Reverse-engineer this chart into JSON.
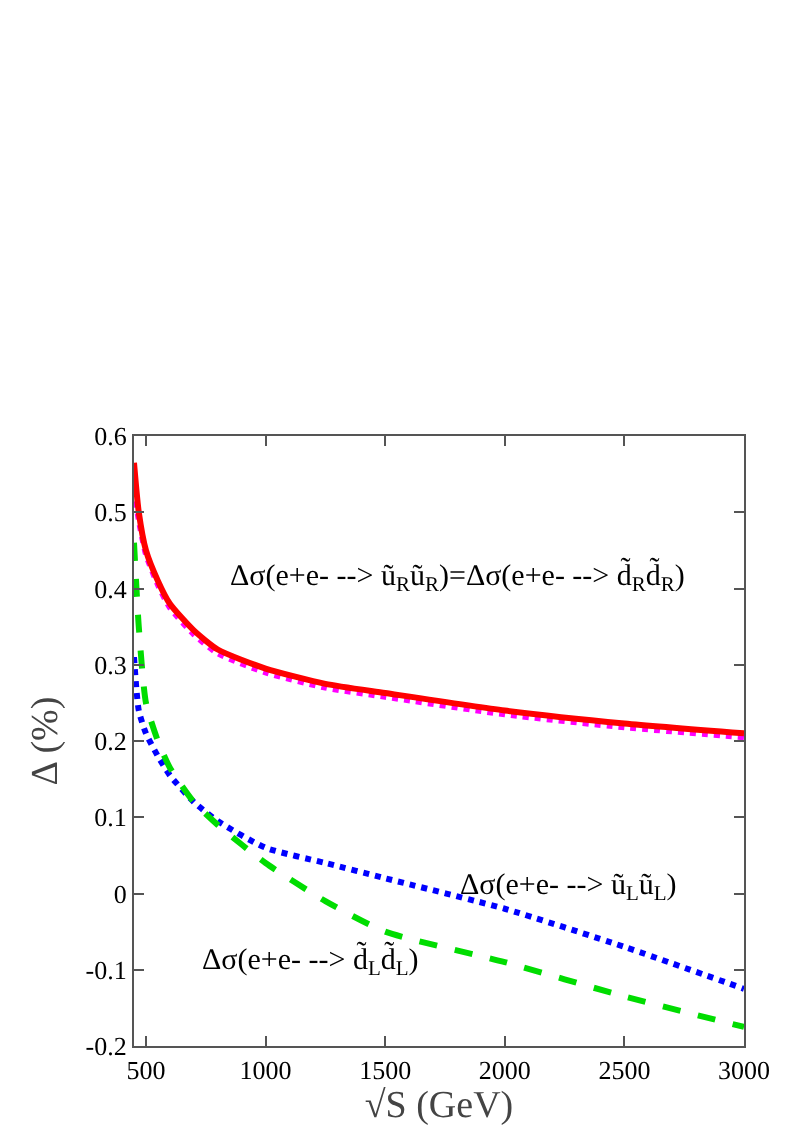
{
  "chart_data": {
    "type": "line",
    "xlabel": "√S (GeV)",
    "ylabel": "Δ (%)",
    "xlim": [
      450,
      3000
    ],
    "ylim": [
      -0.2,
      0.6
    ],
    "xticks": [
      500,
      1000,
      1500,
      2000,
      2500,
      3000
    ],
    "yticks": [
      -0.2,
      -0.1,
      0,
      0.1,
      0.2,
      0.3,
      0.4,
      0.5,
      0.6
    ],
    "grid": false,
    "x": [
      450,
      470,
      500,
      550,
      600,
      700,
      800,
      1000,
      1250,
      1500,
      2000,
      2500,
      3000
    ],
    "series": [
      {
        "color": "#ff00ff",
        "line_style": "dotted",
        "values": [
          0.53,
          0.49,
          0.445,
          0.405,
          0.375,
          0.34,
          0.315,
          0.29,
          0.27,
          0.258,
          0.235,
          0.218,
          0.205
        ]
      },
      {
        "color": "#ff0000",
        "line_style": "solid",
        "values": [
          0.565,
          0.5,
          0.45,
          0.41,
          0.38,
          0.345,
          0.32,
          0.295,
          0.275,
          0.263,
          0.24,
          0.223,
          0.21
        ]
      },
      {
        "color": "#0000ff",
        "line_style": "dotted",
        "values": [
          0.31,
          0.24,
          0.21,
          0.18,
          0.155,
          0.12,
          0.095,
          0.06,
          0.04,
          0.02,
          -0.02,
          -0.07,
          -0.125
        ]
      },
      {
        "color": "#00dd00",
        "line_style": "dashed",
        "values": [
          0.46,
          0.35,
          0.25,
          0.2,
          0.165,
          0.12,
          0.09,
          0.04,
          -0.01,
          -0.05,
          -0.09,
          -0.135,
          -0.175
        ]
      }
    ],
    "annotations": [
      "Δσ(e+e- --> ũ$_{R}$ũ$_{R}$)=Δσ(e+e- --> d̃$_{R}$d̃$_{R}$)",
      "Δσ(e+e- --> ũ$_{L}$ũ$_{L}$)",
      "Δσ(e+e- --> d̃$_{L}$d̃$_{L}$)"
    ]
  }
}
